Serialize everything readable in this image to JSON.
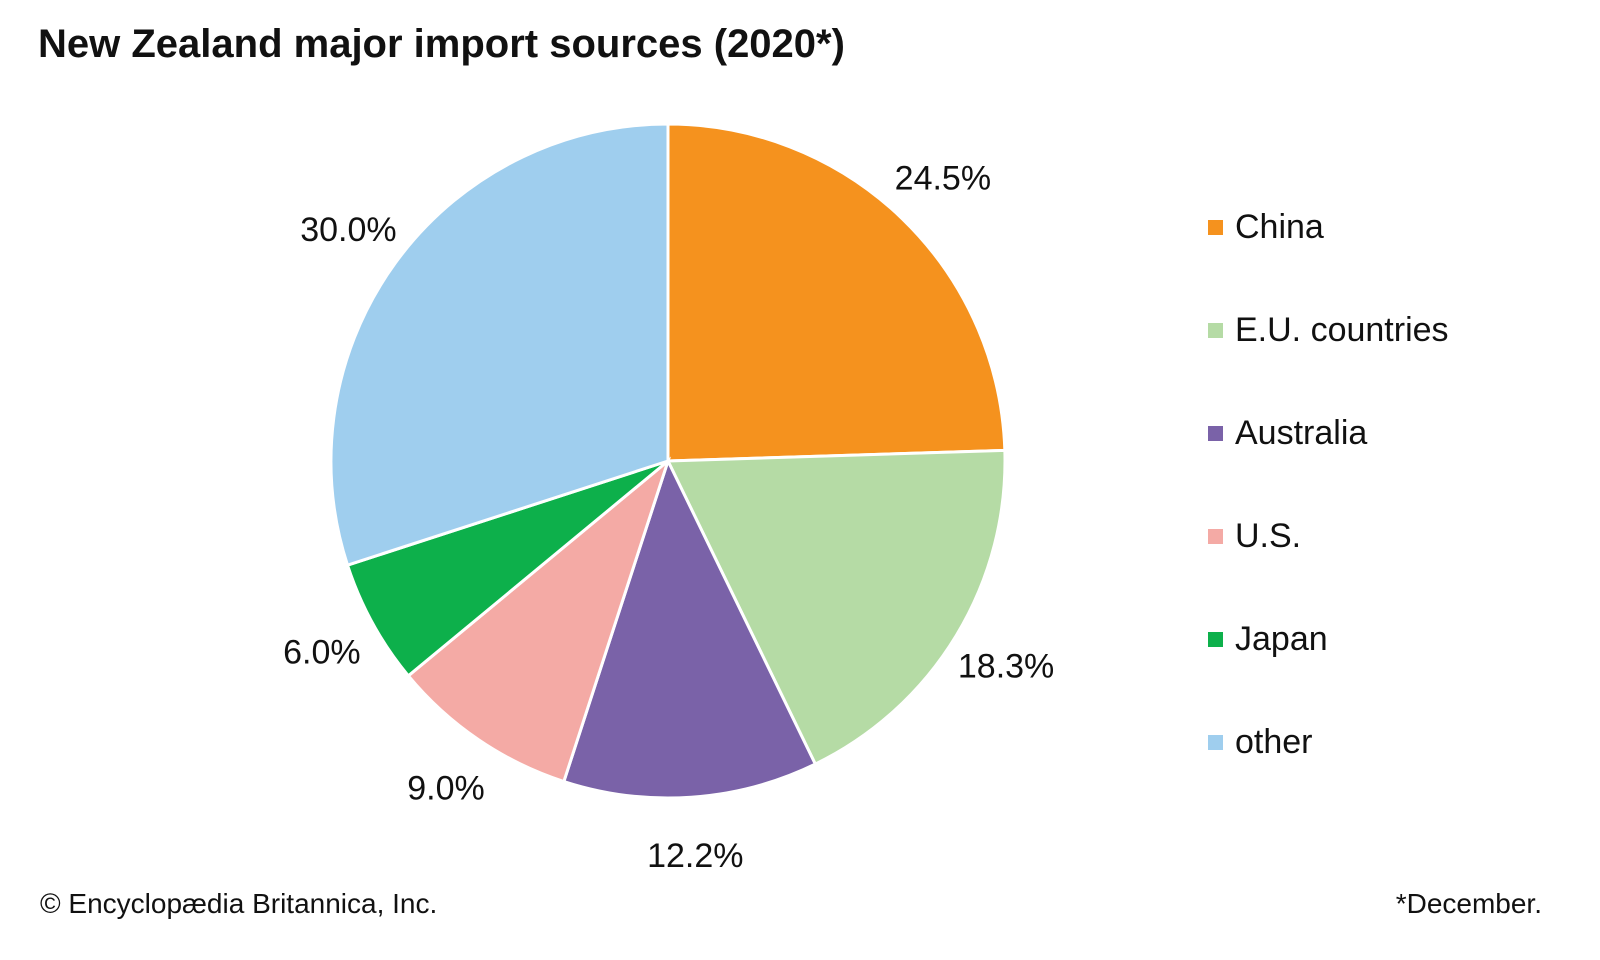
{
  "chart_data": {
    "type": "pie",
    "title": "New Zealand major import sources (2020*)",
    "start": "12 o'clock, clockwise",
    "legend_position": "right",
    "slices": [
      {
        "name": "China",
        "value": 24.5,
        "label": "24.5%",
        "color": "#F5921E"
      },
      {
        "name": "E.U. countries",
        "value": 18.3,
        "label": "18.3%",
        "color": "#B5DBA5"
      },
      {
        "name": "Australia",
        "value": 12.2,
        "label": "12.2%",
        "color": "#7A62A8"
      },
      {
        "name": "U.S.",
        "value": 9.0,
        "label": "9.0%",
        "color": "#F4AAA5"
      },
      {
        "name": "Japan",
        "value": 6.0,
        "label": "6.0%",
        "color": "#0DB04B"
      },
      {
        "name": "other",
        "value": 30.0,
        "label": "30.0%",
        "color": "#9FCEEE"
      }
    ]
  },
  "footer": {
    "credit": "© Encyclopædia Britannica, Inc.",
    "note": "*December."
  }
}
